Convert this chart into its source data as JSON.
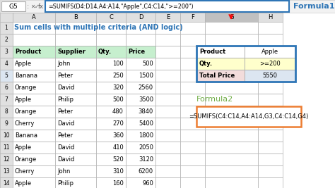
{
  "title": "Sum cells with multiple criteria (AND logic)",
  "formula_bar_cell": "G5",
  "formula_bar_formula": "=SUMIFS(D4:D14,A4:A14,\"Apple\",C4:C14,\">=200\")",
  "formula1_label": "Formula1",
  "formula2_label": "Formula2",
  "formula2_text": "=SUMIFS(C4:C14,A4:A14,G3,C4:C14,G4)",
  "col_headers": [
    "A",
    "B",
    "C",
    "D",
    "E",
    "F",
    "G",
    "H"
  ],
  "table_headers": [
    "Product",
    "Supplier",
    "Qty.",
    "Price"
  ],
  "table_data": [
    [
      "Apple",
      "John",
      "100",
      "500"
    ],
    [
      "Banana",
      "Peter",
      "250",
      "1500"
    ],
    [
      "Orange",
      "David",
      "320",
      "2560"
    ],
    [
      "Apple",
      "Philip",
      "500",
      "3500"
    ],
    [
      "Orange",
      "Peter",
      "480",
      "3840"
    ],
    [
      "Cherry",
      "David",
      "270",
      "5400"
    ],
    [
      "Banana",
      "Peter",
      "360",
      "1800"
    ],
    [
      "Apple",
      "David",
      "410",
      "2050"
    ],
    [
      "Orange",
      "David",
      "520",
      "3120"
    ],
    [
      "Cherry",
      "John",
      "310",
      "6200"
    ],
    [
      "Apple",
      "Philip",
      "160",
      "960"
    ]
  ],
  "right_labels": [
    "Product",
    "Qty.",
    "Total Price"
  ],
  "right_values": [
    "Apple",
    ">=200",
    "5550"
  ],
  "right_label_bgs": [
    "#ffffff",
    "#ffffcc",
    "#f2dcdb"
  ],
  "right_value_bgs": [
    "#ffffff",
    "#ffffcc",
    "#dce6f1"
  ],
  "bg_color": "#ffffff",
  "header_green": "#c6efce",
  "row_header_bg": "#e0e0e0",
  "selected_col_bg": "#c0c0c0",
  "formula_bar_bg": "#f2f2f2",
  "formula_bar_border": "#2e75b6",
  "title_color": "#2e75b6",
  "formula1_color": "#2e75b6",
  "formula2_color": "#70ad47",
  "formula2_box_color": "#ed7d31",
  "right_table_border": "#2e75b6",
  "grid_color": "#b0b0b0",
  "row5_bg": "#dce6f1"
}
